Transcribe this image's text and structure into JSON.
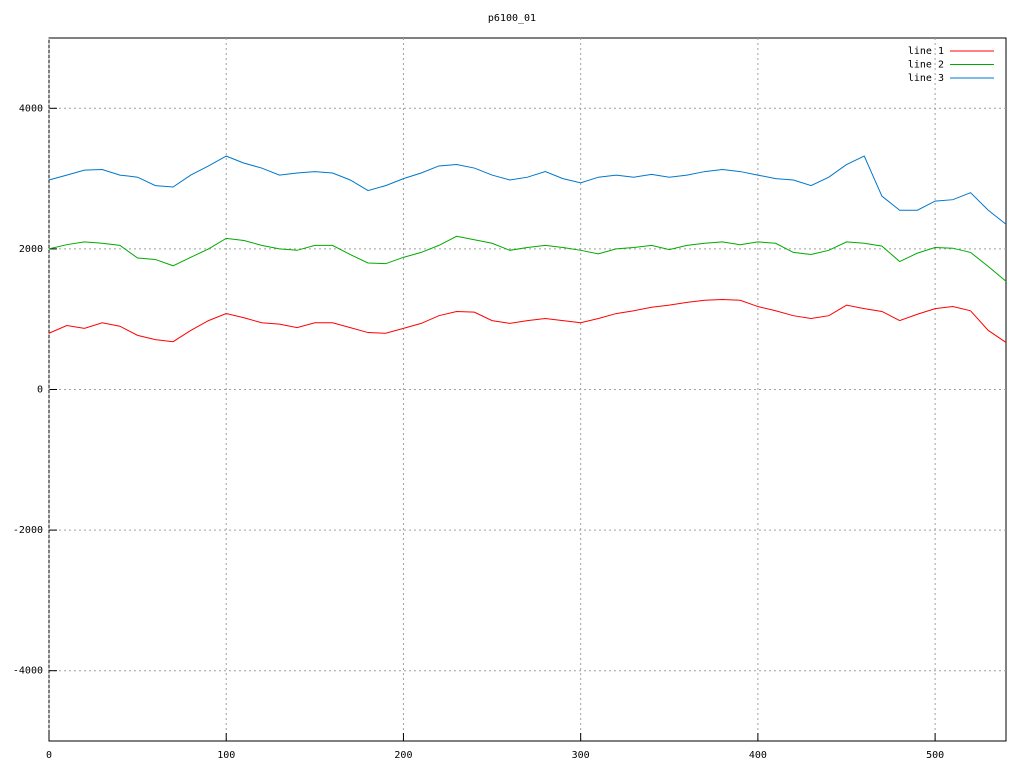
{
  "chart_data": {
    "type": "line",
    "title": "p6100_01",
    "x": [
      0,
      10,
      20,
      30,
      40,
      50,
      60,
      70,
      80,
      90,
      100,
      110,
      120,
      130,
      140,
      150,
      160,
      170,
      180,
      190,
      200,
      210,
      220,
      230,
      240,
      250,
      260,
      270,
      280,
      290,
      300,
      310,
      320,
      330,
      340,
      350,
      360,
      370,
      380,
      390,
      400,
      410,
      420,
      430,
      440,
      450,
      460,
      470,
      480,
      490,
      500,
      510,
      520,
      530,
      540
    ],
    "series": [
      {
        "name": "line 1",
        "color": "#ff0000",
        "values": [
          800,
          910,
          870,
          950,
          900,
          770,
          710,
          680,
          840,
          980,
          1080,
          1020,
          950,
          930,
          880,
          950,
          950,
          880,
          810,
          800,
          870,
          940,
          1050,
          1110,
          1100,
          980,
          940,
          980,
          1010,
          980,
          950,
          1010,
          1080,
          1120,
          1170,
          1200,
          1240,
          1270,
          1280,
          1270,
          1180,
          1120,
          1050,
          1010,
          1050,
          1200,
          1150,
          1110,
          980,
          1070,
          1150,
          1180,
          1120,
          840,
          670
        ]
      },
      {
        "name": "line 2",
        "color": "#00aa00",
        "values": [
          2000,
          2060,
          2100,
          2080,
          2050,
          1870,
          1850,
          1760,
          1880,
          2000,
          2150,
          2120,
          2050,
          2000,
          1980,
          2050,
          2050,
          1920,
          1800,
          1790,
          1880,
          1950,
          2050,
          2180,
          2130,
          2080,
          1980,
          2020,
          2050,
          2020,
          1980,
          1930,
          2000,
          2020,
          2050,
          1990,
          2050,
          2080,
          2100,
          2060,
          2100,
          2080,
          1950,
          1920,
          1980,
          2100,
          2080,
          2040,
          1820,
          1940,
          2020,
          2010,
          1950,
          1750,
          1540
        ]
      },
      {
        "name": "line 3",
        "color": "#0077cc",
        "values": [
          2980,
          3050,
          3120,
          3130,
          3050,
          3020,
          2900,
          2880,
          3050,
          3180,
          3320,
          3220,
          3150,
          3050,
          3080,
          3100,
          3080,
          2980,
          2830,
          2900,
          3000,
          3080,
          3180,
          3200,
          3150,
          3050,
          2980,
          3020,
          3100,
          3000,
          2940,
          3020,
          3050,
          3020,
          3060,
          3020,
          3050,
          3100,
          3130,
          3100,
          3050,
          3000,
          2980,
          2900,
          3020,
          3200,
          3320,
          2750,
          2550,
          2550,
          2680,
          2700,
          2800,
          2550,
          2350
        ]
      }
    ],
    "xlim": [
      0,
      540
    ],
    "xticks": [
      0,
      100,
      200,
      300,
      400,
      500
    ],
    "ylim": [
      -5000,
      5000
    ],
    "yticks": [
      -4000,
      -2000,
      0,
      2000,
      4000
    ],
    "grid": true,
    "legend": "top-right"
  }
}
